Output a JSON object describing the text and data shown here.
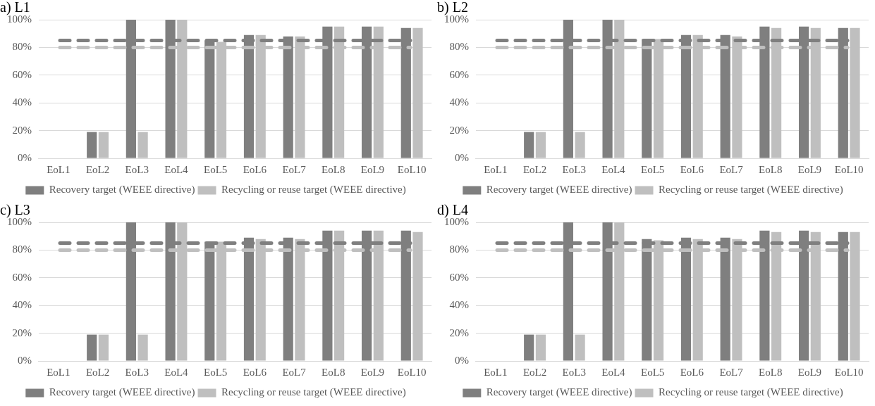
{
  "chart_data": [
    {
      "type": "bar",
      "title": "a) L1",
      "categories": [
        "EoL1",
        "EoL2",
        "EoL3",
        "EoL4",
        "EoL5",
        "EoL6",
        "EoL7",
        "EoL8",
        "EoL9",
        "EoL10"
      ],
      "series": [
        {
          "name": "Recovery target (WEEE directive)",
          "color": "#7f7f7f",
          "values": [
            0,
            19,
            100,
            100,
            85,
            89,
            88,
            95,
            95,
            94
          ]
        },
        {
          "name": "Recycling or reuse target (WEEE directive)",
          "color": "#bfbfbf",
          "values": [
            0,
            19,
            19,
            100,
            84,
            89,
            88,
            95,
            95,
            94
          ]
        }
      ],
      "ylim": [
        0,
        100
      ],
      "yticks": [
        {
          "value": 0,
          "label": "0%"
        },
        {
          "value": 20,
          "label": "20%"
        },
        {
          "value": 40,
          "label": "40%"
        },
        {
          "value": 60,
          "label": "60%"
        },
        {
          "value": 80,
          "label": "80%"
        },
        {
          "value": 100,
          "label": "100%"
        }
      ],
      "ref_lines": [
        {
          "axis": "y",
          "value": 85,
          "color": "#7f7f7f",
          "line_style": "dashed"
        },
        {
          "axis": "y",
          "value": 80,
          "color": "#bfbfbf",
          "line_style": "dashed"
        }
      ],
      "grid": "y",
      "legend": "bottom"
    },
    {
      "type": "bar",
      "title": "b) L2",
      "categories": [
        "EoL1",
        "EoL2",
        "EoL3",
        "EoL4",
        "EoL5",
        "EoL6",
        "EoL7",
        "EoL8",
        "EoL9",
        "EoL10"
      ],
      "series": [
        {
          "name": "Recovery target (WEEE directive)",
          "color": "#7f7f7f",
          "values": [
            0,
            19,
            100,
            100,
            86,
            89,
            89,
            95,
            95,
            94
          ]
        },
        {
          "name": "Recycling or reuse target (WEEE directive)",
          "color": "#bfbfbf",
          "values": [
            0,
            19,
            19,
            100,
            86,
            89,
            88,
            94,
            94,
            94
          ]
        }
      ],
      "ylim": [
        0,
        100
      ],
      "yticks": [
        {
          "value": 0,
          "label": "0%"
        },
        {
          "value": 20,
          "label": "20%"
        },
        {
          "value": 40,
          "label": "40%"
        },
        {
          "value": 60,
          "label": "60%"
        },
        {
          "value": 80,
          "label": "80%"
        },
        {
          "value": 100,
          "label": "100%"
        }
      ],
      "ref_lines": [
        {
          "axis": "y",
          "value": 85,
          "color": "#7f7f7f",
          "line_style": "dashed"
        },
        {
          "axis": "y",
          "value": 80,
          "color": "#bfbfbf",
          "line_style": "dashed"
        }
      ],
      "grid": "y",
      "legend": "bottom"
    },
    {
      "type": "bar",
      "title": "c) L3",
      "categories": [
        "EoL1",
        "EoL2",
        "EoL3",
        "EoL4",
        "EoL5",
        "EoL6",
        "EoL7",
        "EoL8",
        "EoL9",
        "EoL10"
      ],
      "series": [
        {
          "name": "Recovery target (WEEE directive)",
          "color": "#7f7f7f",
          "values": [
            0,
            19,
            100,
            100,
            86,
            89,
            89,
            94,
            94,
            94
          ]
        },
        {
          "name": "Recycling or reuse target (WEEE directive)",
          "color": "#bfbfbf",
          "values": [
            0,
            19,
            19,
            100,
            86,
            88,
            88,
            94,
            94,
            93
          ]
        }
      ],
      "ylim": [
        0,
        100
      ],
      "yticks": [
        {
          "value": 0,
          "label": "0%"
        },
        {
          "value": 20,
          "label": "20%"
        },
        {
          "value": 40,
          "label": "40%"
        },
        {
          "value": 60,
          "label": "60%"
        },
        {
          "value": 80,
          "label": "80%"
        },
        {
          "value": 100,
          "label": "100%"
        }
      ],
      "ref_lines": [
        {
          "axis": "y",
          "value": 85,
          "color": "#7f7f7f",
          "line_style": "dashed"
        },
        {
          "axis": "y",
          "value": 80,
          "color": "#bfbfbf",
          "line_style": "dashed"
        }
      ],
      "grid": "y",
      "legend": "bottom"
    },
    {
      "type": "bar",
      "title": "d) L4",
      "categories": [
        "EoL1",
        "EoL2",
        "EoL3",
        "EoL4",
        "EoL5",
        "EoL6",
        "EoL7",
        "EoL8",
        "EoL9",
        "EoL10"
      ],
      "series": [
        {
          "name": "Recovery target (WEEE directive)",
          "color": "#7f7f7f",
          "values": [
            0,
            19,
            100,
            100,
            88,
            89,
            89,
            94,
            94,
            93
          ]
        },
        {
          "name": "Recycling or reuse target (WEEE directive)",
          "color": "#bfbfbf",
          "values": [
            0,
            19,
            19,
            100,
            87,
            88,
            88,
            93,
            93,
            93
          ]
        }
      ],
      "ylim": [
        0,
        100
      ],
      "yticks": [
        {
          "value": 0,
          "label": "0%"
        },
        {
          "value": 20,
          "label": "20%"
        },
        {
          "value": 40,
          "label": "40%"
        },
        {
          "value": 60,
          "label": "60%"
        },
        {
          "value": 80,
          "label": "80%"
        },
        {
          "value": 100,
          "label": "100%"
        }
      ],
      "ref_lines": [
        {
          "axis": "y",
          "value": 85,
          "color": "#7f7f7f",
          "line_style": "dashed"
        },
        {
          "axis": "y",
          "value": 80,
          "color": "#bfbfbf",
          "line_style": "dashed"
        }
      ],
      "grid": "y",
      "legend": "bottom"
    }
  ]
}
